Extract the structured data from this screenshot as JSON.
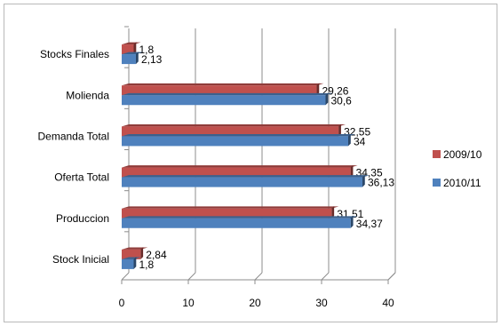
{
  "chart_data": {
    "type": "bar",
    "orientation": "horizontal",
    "three_d": true,
    "categories": [
      "Stocks Finales",
      "Molienda",
      "Demanda Total",
      "Oferta Total",
      "Produccion",
      "Stock Inicial"
    ],
    "series": [
      {
        "name": "2009/10",
        "color": "#c0504d",
        "values": [
          1.8,
          29.26,
          32.55,
          34.35,
          31.51,
          2.84
        ],
        "labels": [
          "1,8",
          "29,26",
          "32,55",
          "34,35",
          "31,51",
          "2,84"
        ]
      },
      {
        "name": "2010/11",
        "color": "#4f81bd",
        "values": [
          2.13,
          30.6,
          34,
          36.13,
          34.37,
          1.8
        ],
        "labels": [
          "2,13",
          "30,6",
          "34",
          "36,13",
          "34,37",
          "1,8"
        ]
      }
    ],
    "xlim": [
      0,
      40
    ],
    "xticks": [
      "0",
      "10",
      "20",
      "30",
      "40"
    ],
    "grid": true,
    "legend_position": "right"
  }
}
